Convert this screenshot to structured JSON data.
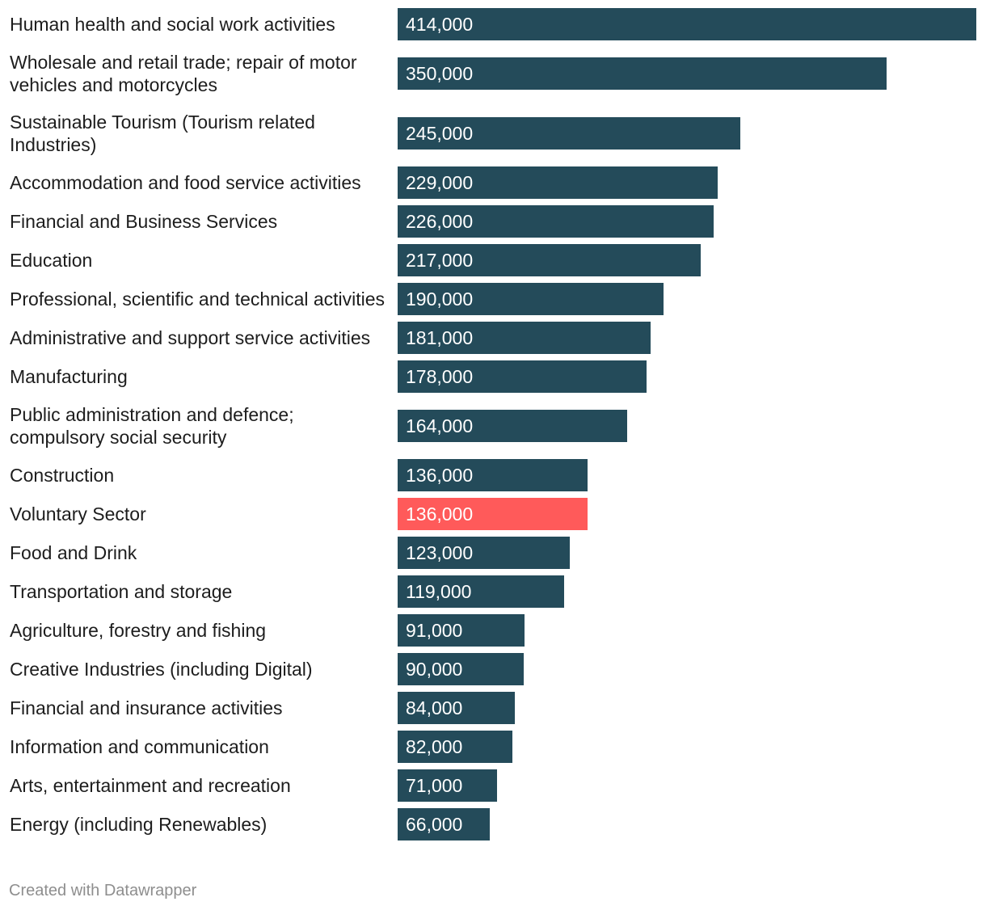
{
  "chart_data": {
    "type": "bar",
    "orientation": "horizontal",
    "categories": [
      "Human health and social work activities",
      "Wholesale and retail trade; repair of motor vehicles and motorcycles",
      "Sustainable Tourism (Tourism related Industries)",
      "Accommodation and food service activities",
      "Financial and Business Services",
      "Education",
      "Professional, scientific and technical activities",
      "Administrative and support service activities",
      "Manufacturing",
      "Public administration and defence; compulsory social security",
      "Construction",
      "Voluntary Sector",
      "Food and Drink",
      "Transportation and storage",
      "Agriculture, forestry and fishing",
      "Creative Industries (including Digital)",
      "Financial and insurance activities",
      "Information and communication",
      "Arts, entertainment and recreation",
      "Energy (including Renewables)"
    ],
    "values": [
      414000,
      350000,
      245000,
      229000,
      226000,
      217000,
      190000,
      181000,
      178000,
      164000,
      136000,
      136000,
      123000,
      119000,
      91000,
      90000,
      84000,
      82000,
      71000,
      66000
    ],
    "value_labels": [
      "414,000",
      "350,000",
      "245,000",
      "229,000",
      "226,000",
      "217,000",
      "190,000",
      "181,000",
      "178,000",
      "164,000",
      "136,000",
      "136,000",
      "123,000",
      "119,000",
      "91,000",
      "90,000",
      "84,000",
      "82,000",
      "71,000",
      "66,000"
    ],
    "highlight_category": "Voluntary Sector",
    "title": "",
    "xlabel": "",
    "ylabel": "",
    "xlim": [
      0,
      414000
    ],
    "grid": false,
    "legend": "none"
  },
  "colors": {
    "bar": "#244b5a",
    "highlight": "#ff5a5a"
  },
  "footer": {
    "credit": "Created with Datawrapper"
  }
}
